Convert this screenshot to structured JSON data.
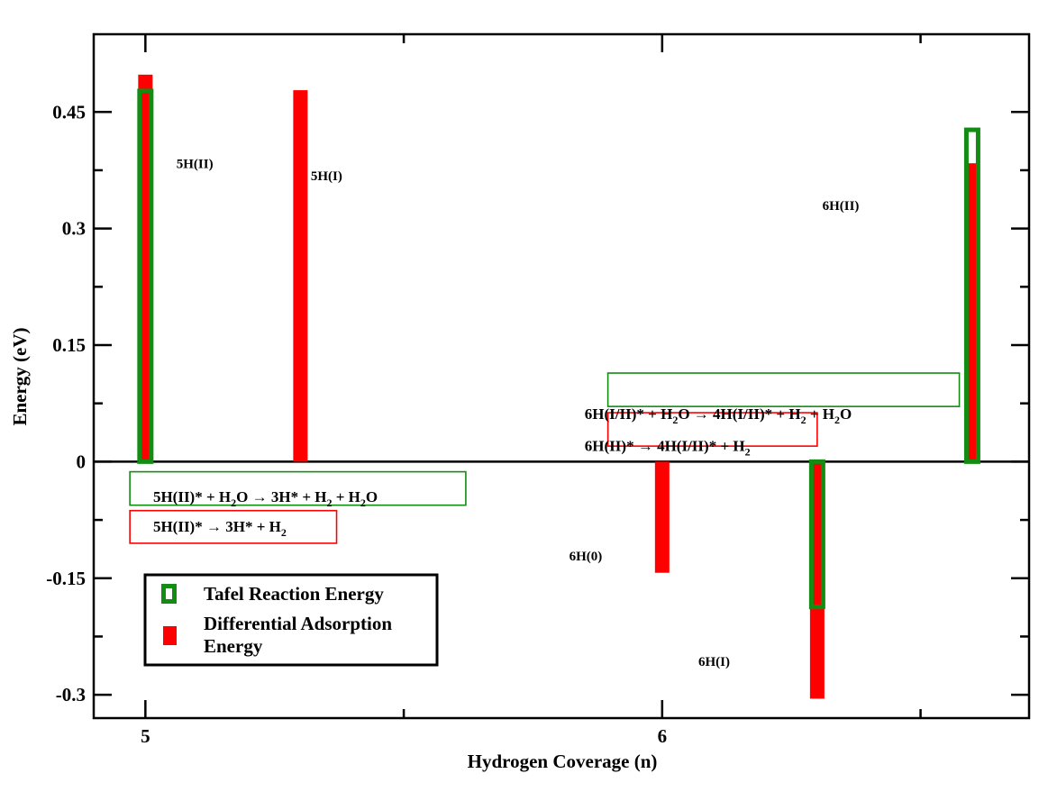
{
  "chart_data": {
    "type": "bar",
    "xlabel": "Hydrogen Coverage (n)",
    "ylabel": "Energy (eV)",
    "xlim": [
      4.9,
      6.71
    ],
    "ylim": [
      -0.33,
      0.55
    ],
    "x_ticks": [
      5,
      6
    ],
    "x_tick_labels": [
      "5",
      "6"
    ],
    "y_ticks": [
      -0.3,
      -0.15,
      0,
      0.15,
      0.3,
      0.45
    ],
    "y_tick_labels": [
      "-0.3",
      "-0.15",
      "0",
      "0.15",
      "0.3",
      "0.45"
    ],
    "grid": false,
    "legend_position": "bottom-left",
    "series": [
      {
        "name": "Tafel Reaction Energy",
        "style": "hollow",
        "color": "#138c13",
        "points": [
          {
            "x": 5.0,
            "value": 0.477
          },
          {
            "x": 6.3,
            "value": -0.187
          },
          {
            "x": 6.6,
            "value": 0.427
          }
        ]
      },
      {
        "name": "Differential Adsorption Energy",
        "style": "filled",
        "color": "#ff0000",
        "points": [
          {
            "x": 5.0,
            "value": 0.498
          },
          {
            "x": 5.3,
            "value": 0.478
          },
          {
            "x": 6.0,
            "value": -0.143
          },
          {
            "x": 6.3,
            "value": -0.305
          },
          {
            "x": 6.6,
            "value": 0.384
          }
        ]
      }
    ],
    "bar_labels": [
      {
        "id": "5h-ii",
        "text": "5H(II)",
        "x": 5.06,
        "y": 0.378
      },
      {
        "id": "5h-i",
        "text": "5H(I)",
        "x": 5.32,
        "y": 0.362
      },
      {
        "id": "6h-0",
        "text": "6H(0)",
        "x": 5.82,
        "y": -0.127
      },
      {
        "id": "6h-i",
        "text": "6H(I)",
        "x": 6.07,
        "y": -0.263
      },
      {
        "id": "6h-ii",
        "text": "6H(II)",
        "x": 6.31,
        "y": 0.324
      }
    ],
    "annotations": [
      {
        "id": "eq-5-tafel",
        "color": "#138c13",
        "parts": [
          [
            "5H(II)* + H",
            ""
          ],
          [
            "2",
            "sub"
          ],
          [
            "O → 3H* + H",
            ""
          ],
          [
            "2",
            "sub"
          ],
          [
            " + H",
            ""
          ],
          [
            "2",
            "sub"
          ],
          [
            "O",
            ""
          ]
        ],
        "x": 5.015,
        "y": -0.052
      },
      {
        "id": "eq-5-dae",
        "color": "#ff0000",
        "parts": [
          [
            "5H(II)*  → 3H* + H",
            ""
          ],
          [
            "2",
            "sub"
          ]
        ],
        "x": 5.015,
        "y": -0.09
      },
      {
        "id": "eq-6-tafel",
        "color": "#138c13",
        "parts": [
          [
            "6H(I/II)* + H",
            ""
          ],
          [
            "2",
            "sub"
          ],
          [
            "O → 4H(I/II)* + H",
            ""
          ],
          [
            "2",
            "sub"
          ],
          [
            " + H",
            ""
          ],
          [
            "2",
            "sub"
          ],
          [
            "O",
            ""
          ]
        ],
        "x": 5.85,
        "y": 0.055
      },
      {
        "id": "eq-6-dae",
        "color": "#ff0000",
        "parts": [
          [
            "6H(II)*  → 4H(I/II)* + H",
            ""
          ],
          [
            "2",
            "sub"
          ]
        ],
        "x": 5.85,
        "y": 0.014
      }
    ],
    "annotation_boxes": [
      {
        "id": "box-5-tafel",
        "color": "#138c13",
        "x0": 4.97,
        "x1": 5.62,
        "y0": -0.056,
        "y1": -0.013
      },
      {
        "id": "box-5-dae",
        "color": "#ff0000",
        "x0": 4.97,
        "x1": 5.37,
        "y0": -0.105,
        "y1": -0.063
      },
      {
        "id": "box-6-tafel",
        "color": "#138c13",
        "x0": 5.895,
        "x1": 6.575,
        "y0": 0.071,
        "y1": 0.114
      },
      {
        "id": "box-6-dae",
        "color": "#ff0000",
        "x0": 5.895,
        "x1": 6.3,
        "y0": 0.02,
        "y1": 0.063
      }
    ]
  }
}
